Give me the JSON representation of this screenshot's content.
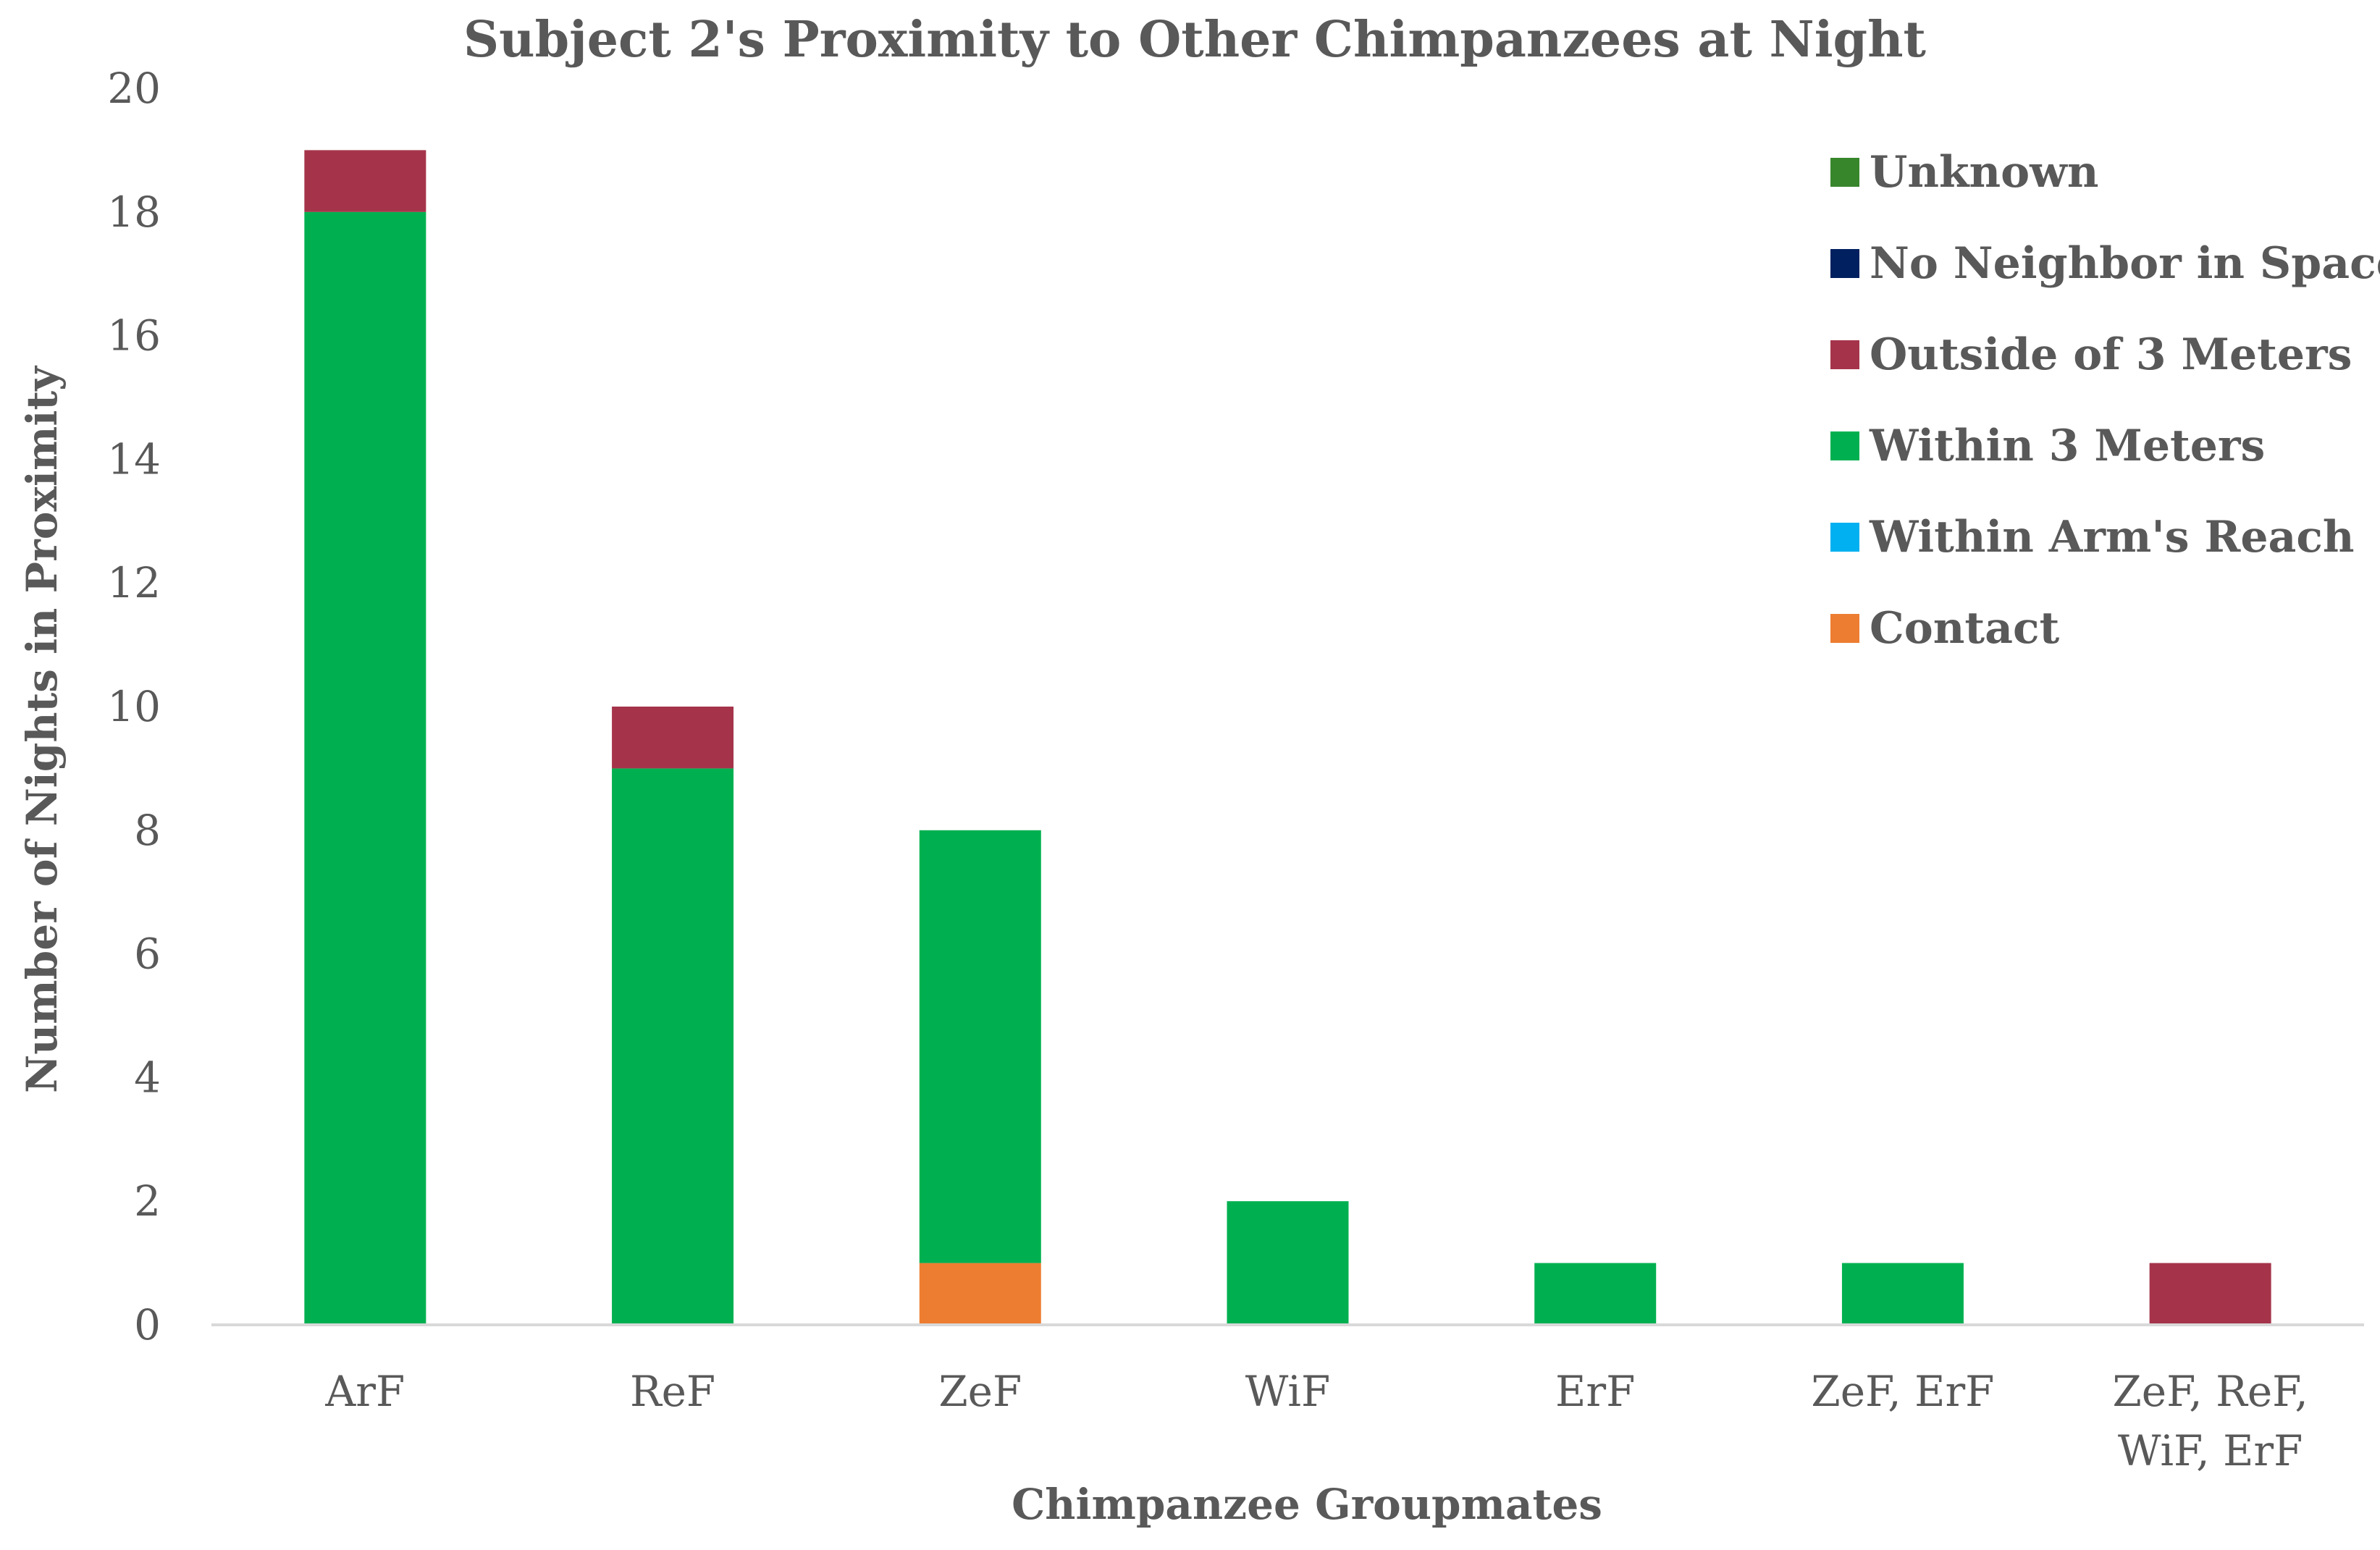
{
  "chart_data": {
    "type": "bar",
    "stacked": true,
    "title": "Subject 2's Proximity to Other Chimpanzees at Night",
    "xlabel": "Chimpanzee Groupmates",
    "ylabel": "Number of Nights in Proximity",
    "ylim": [
      0,
      20
    ],
    "yticks": [
      0,
      2,
      4,
      6,
      8,
      10,
      12,
      14,
      16,
      18,
      20
    ],
    "grid": false,
    "legend_position": "top-right",
    "categories": [
      [
        "ArF"
      ],
      [
        "ReF"
      ],
      [
        "ZeF"
      ],
      [
        "WiF"
      ],
      [
        "ErF"
      ],
      [
        "ZeF, ErF"
      ],
      [
        "ZeF, ReF,",
        "WiF, ErF"
      ]
    ],
    "series": [
      {
        "name": "Contact",
        "color": "#ED7D31",
        "values": [
          0,
          0,
          1,
          0,
          0,
          0,
          0
        ]
      },
      {
        "name": "Within Arm's Reach",
        "color": "#00B0F0",
        "values": [
          0,
          0,
          0,
          0,
          0,
          0,
          0
        ]
      },
      {
        "name": "Within 3 Meters",
        "color": "#00B050",
        "values": [
          18,
          9,
          7,
          2,
          1,
          1,
          0
        ]
      },
      {
        "name": "Outside of 3 Meters",
        "color": "#A5344A",
        "values": [
          1,
          1,
          0,
          0,
          0,
          0,
          1
        ]
      },
      {
        "name": "No Neighbor in Space",
        "color": "#002060",
        "values": [
          0,
          0,
          0,
          0,
          0,
          0,
          0
        ]
      },
      {
        "name": "Unknown",
        "color": "#38862B",
        "values": [
          0,
          0,
          0,
          0,
          0,
          0,
          0
        ]
      }
    ],
    "legend_order": [
      "Unknown",
      "No Neighbor in Space",
      "Outside of 3 Meters",
      "Within 3 Meters",
      "Within Arm's Reach",
      "Contact"
    ]
  }
}
